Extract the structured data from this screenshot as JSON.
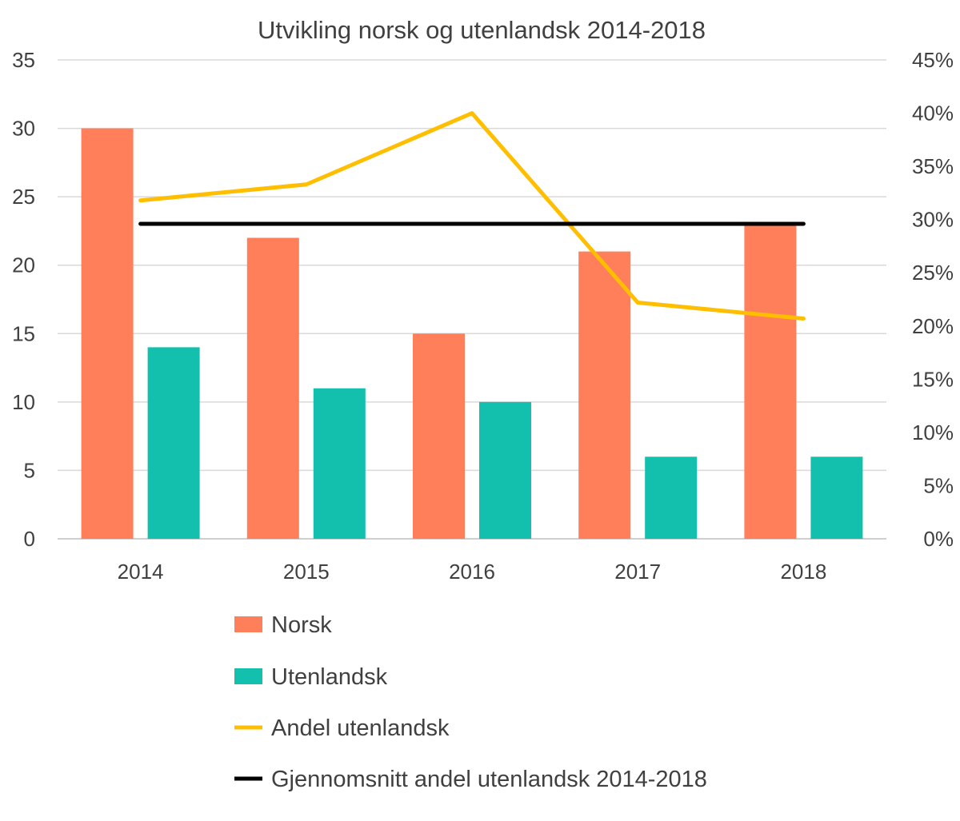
{
  "chart_data": {
    "type": "bar",
    "title": "Utvikling norsk og utenlandsk 2014-2018",
    "categories": [
      "2014",
      "2015",
      "2016",
      "2017",
      "2018"
    ],
    "series": [
      {
        "name": "Norsk",
        "kind": "bar",
        "axis": "left",
        "color": "#FF7F5A",
        "values": [
          30,
          22,
          15,
          21,
          23
        ]
      },
      {
        "name": "Utenlandsk",
        "kind": "bar",
        "axis": "left",
        "color": "#13C0AD",
        "values": [
          14,
          11,
          10,
          6,
          6
        ]
      },
      {
        "name": "Andel utenlandsk",
        "kind": "line",
        "axis": "right",
        "color": "#FFBF00",
        "values": [
          0.318,
          0.333,
          0.4,
          0.222,
          0.207
        ]
      },
      {
        "name": "Gjennomsnitt andel utenlandsk 2014-2018",
        "kind": "line",
        "axis": "right",
        "color": "#000000",
        "values": [
          0.296,
          0.296,
          0.296,
          0.296,
          0.296
        ]
      }
    ],
    "y_left": {
      "min": 0,
      "max": 35,
      "step": 5,
      "ticks": [
        "0",
        "5",
        "10",
        "15",
        "20",
        "25",
        "30",
        "35"
      ]
    },
    "y_right": {
      "min": 0,
      "max": 0.45,
      "step": 0.05,
      "ticks": [
        "0%",
        "5%",
        "10%",
        "15%",
        "20%",
        "25%",
        "30%",
        "35%",
        "40%",
        "45%"
      ]
    },
    "grid": true,
    "legend_position": "bottom"
  }
}
